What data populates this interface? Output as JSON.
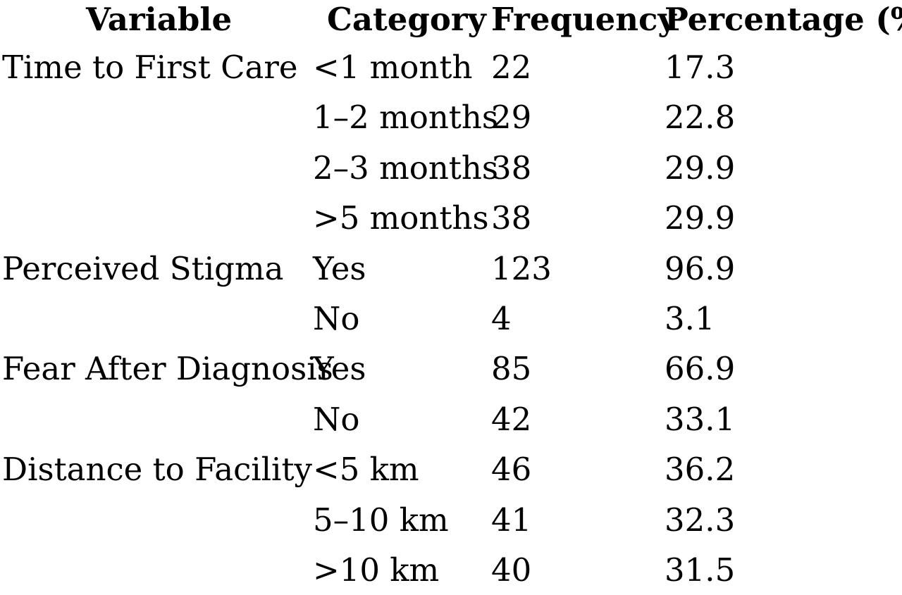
{
  "table": {
    "headers": {
      "variable": "Variable",
      "category": "Category",
      "frequency": "Frequency",
      "percentage": "Percentage (%)"
    },
    "rows": [
      {
        "variable": "Time to First Care",
        "category": "<1 month",
        "frequency": "22",
        "percentage": "17.3"
      },
      {
        "variable": "",
        "category": "1–2 months",
        "frequency": "29",
        "percentage": "22.8"
      },
      {
        "variable": "",
        "category": "2–3 months",
        "frequency": "38",
        "percentage": "29.9"
      },
      {
        "variable": "",
        "category": ">5 months",
        "frequency": "38",
        "percentage": "29.9"
      },
      {
        "variable": "Perceived Stigma",
        "category": "Yes",
        "frequency": "123",
        "percentage": "96.9"
      },
      {
        "variable": "",
        "category": "No",
        "frequency": "4",
        "percentage": "3.1"
      },
      {
        "variable": "Fear After Diagnosis",
        "category": "Yes",
        "frequency": "85",
        "percentage": "66.9"
      },
      {
        "variable": "",
        "category": "No",
        "frequency": "42",
        "percentage": "33.1"
      },
      {
        "variable": "Distance to Facility",
        "category": "<5 km",
        "frequency": "46",
        "percentage": "36.2"
      },
      {
        "variable": "",
        "category": "5–10 km",
        "frequency": "41",
        "percentage": "32.3"
      },
      {
        "variable": "",
        "category": ">10 km",
        "frequency": "40",
        "percentage": "31.5"
      }
    ]
  }
}
